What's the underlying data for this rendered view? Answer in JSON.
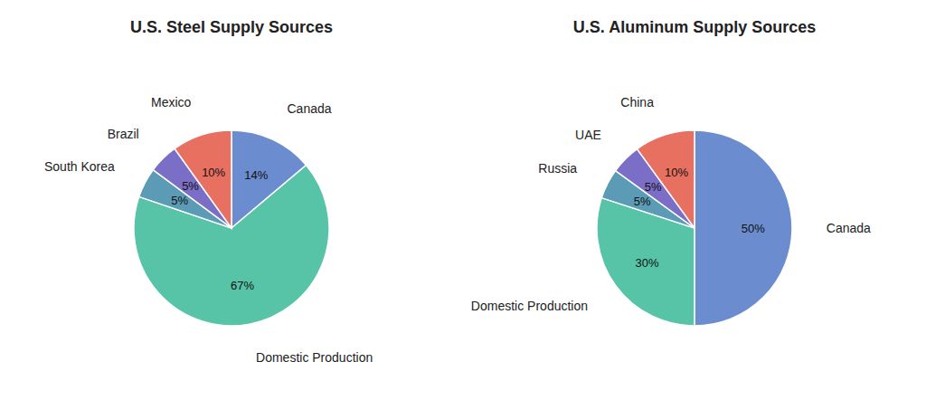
{
  "chart_data": [
    {
      "type": "pie",
      "title": "U.S. Steel Supply Sources",
      "categories": [
        "Canada",
        "Domestic Production",
        "South Korea",
        "Brazil",
        "Mexico"
      ],
      "values": [
        14,
        67,
        5,
        5,
        10
      ],
      "value_labels": [
        "14%",
        "67%",
        "5%",
        "5%",
        "10%"
      ],
      "colors": [
        "#6b8cce",
        "#57c4a7",
        "#5b9bb5",
        "#7b6ec6",
        "#e87060"
      ],
      "data_labels": true
    },
    {
      "type": "pie",
      "title": "U.S. Aluminum Supply Sources",
      "categories": [
        "Canada",
        "Domestic Production",
        "Russia",
        "UAE",
        "China"
      ],
      "values": [
        50,
        30,
        5,
        5,
        10
      ],
      "value_labels": [
        "50%",
        "30%",
        "5%",
        "5%",
        "10%"
      ],
      "colors": [
        "#6b8cce",
        "#57c4a7",
        "#5b9bb5",
        "#7b6ec6",
        "#e87060"
      ],
      "data_labels": true
    }
  ]
}
